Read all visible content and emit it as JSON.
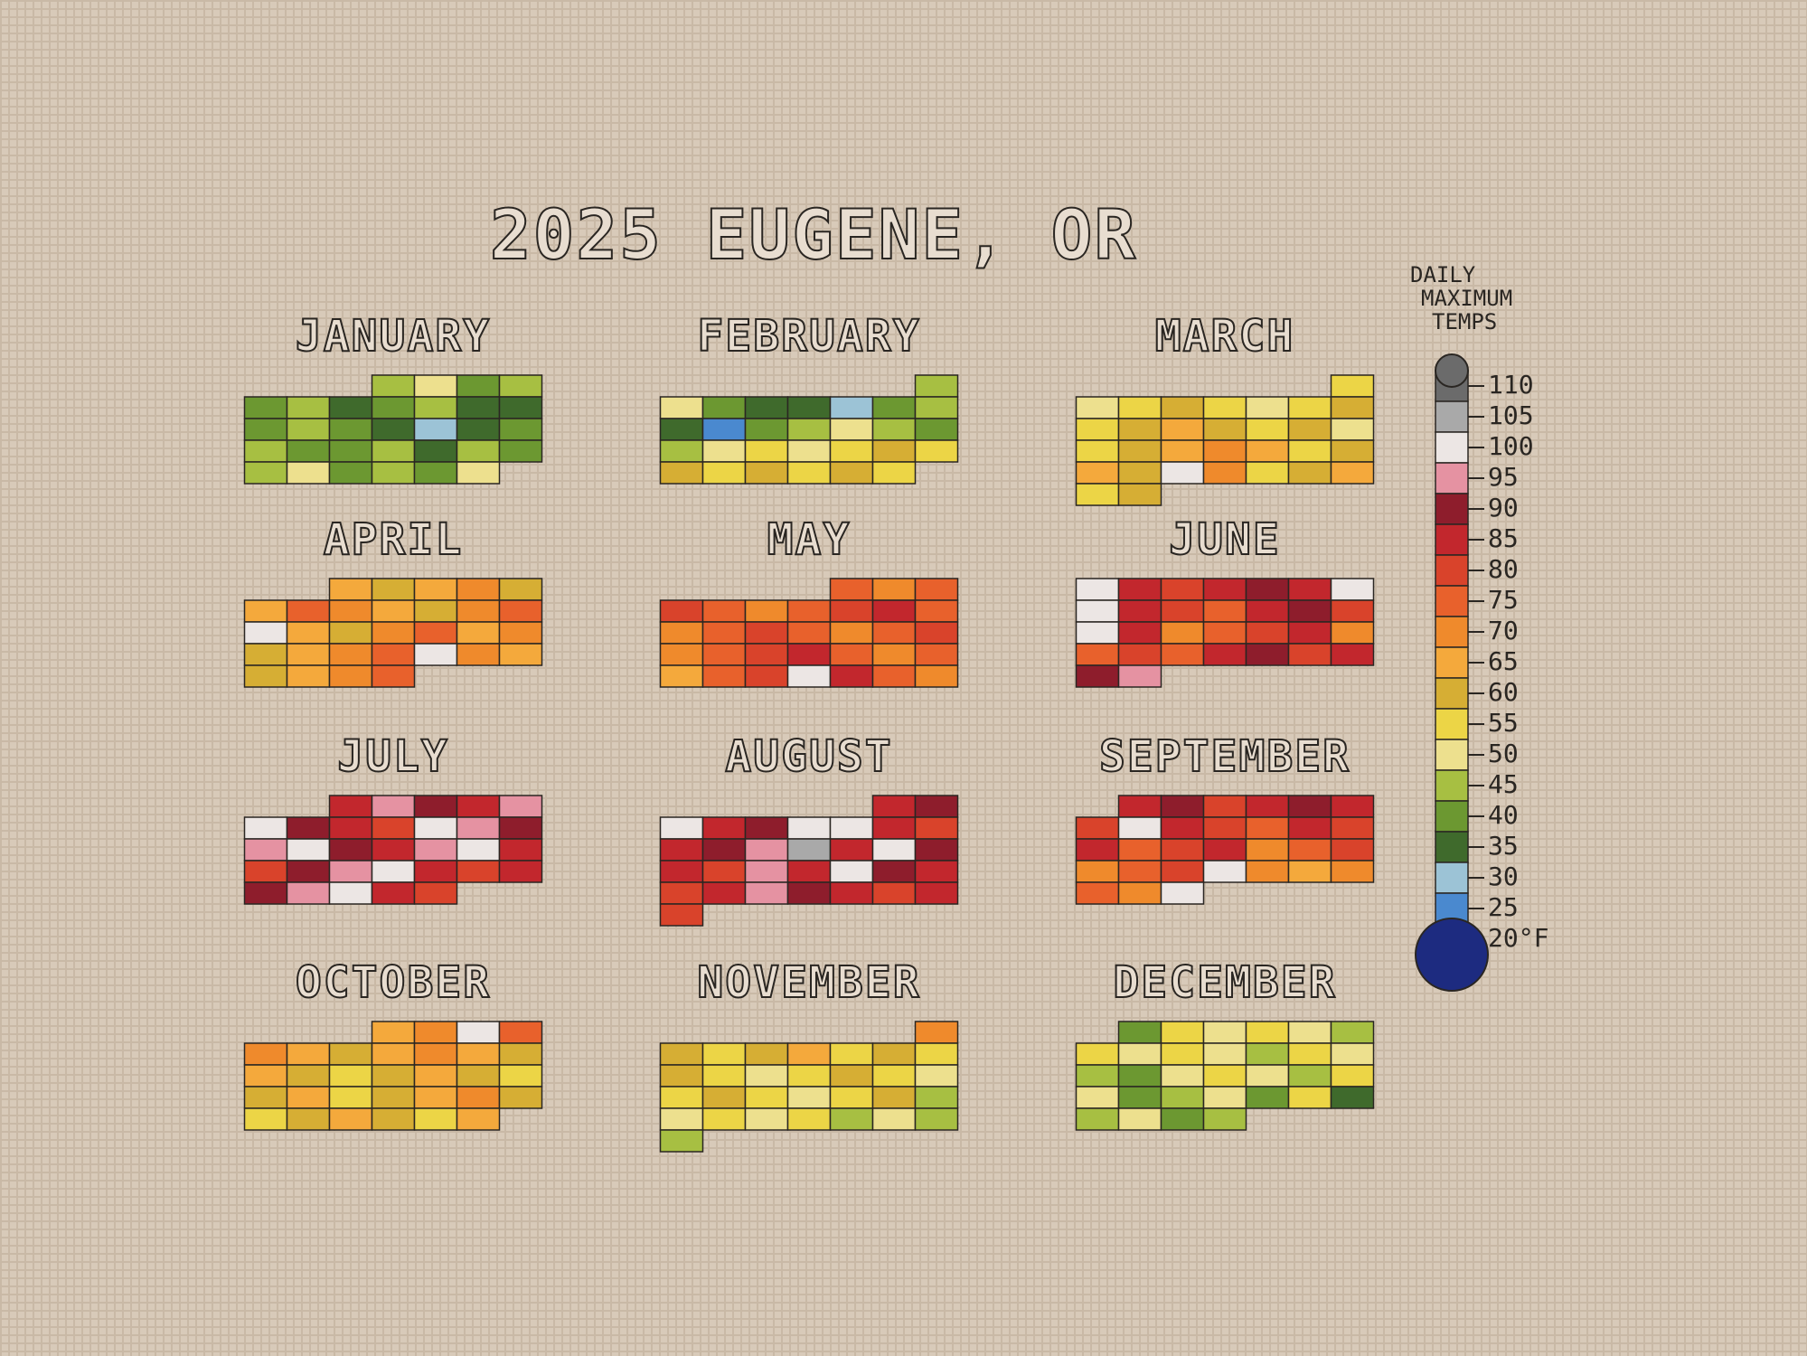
{
  "chart_data": {
    "type": "calendar-heatmap",
    "title": "2025 EUGENE, OR",
    "legend_title": [
      "DAILY",
      "MAXIMUM",
      "TEMPS"
    ],
    "yticks": [
      110,
      105,
      100,
      95,
      90,
      85,
      80,
      75,
      70,
      65,
      60,
      55,
      50,
      45,
      40,
      35,
      30,
      25,
      {
        "value": 20,
        "label": "20°F"
      }
    ],
    "colors": [
      "#6b6b6b",
      "#a9a9a9",
      "#ece6e4",
      "#e592a2",
      "#8e1d2c",
      "#c2272d",
      "#d9432b",
      "#e8612c",
      "#ef8a2c",
      "#f4a93c",
      "#d6ae34",
      "#ecd546",
      "#ede08e",
      "#a7bf42",
      "#6c9831",
      "#3f6a2c",
      "#9cc3d6",
      "#4a89cf",
      "#1d2b80"
    ],
    "months": [
      {
        "name": "JANUARY",
        "values": [
          45,
          50,
          40,
          45,
          40,
          45,
          35,
          40,
          45,
          35,
          35,
          40,
          45,
          40,
          35,
          30,
          35,
          40,
          45,
          40,
          40,
          45,
          35,
          45,
          40,
          45,
          50,
          40,
          45,
          40,
          50
        ]
      },
      {
        "name": "FEBRUARY",
        "values": [
          45,
          50,
          40,
          35,
          35,
          30,
          40,
          45,
          35,
          25,
          40,
          45,
          50,
          45,
          40,
          45,
          50,
          55,
          50,
          55,
          60,
          55,
          60,
          55,
          60,
          55,
          60,
          55
        ]
      },
      {
        "name": "MARCH",
        "values": [
          55,
          50,
          55,
          60,
          55,
          50,
          55,
          60,
          55,
          60,
          65,
          60,
          55,
          60,
          50,
          55,
          60,
          65,
          70,
          65,
          55,
          60,
          65,
          60,
          100,
          70,
          55,
          60,
          65,
          55,
          60
        ]
      },
      {
        "name": "APRIL",
        "values": [
          65,
          60,
          65,
          70,
          60,
          65,
          75,
          70,
          65,
          60,
          70,
          75,
          100,
          65,
          60,
          70,
          75,
          65,
          70,
          60,
          65,
          70,
          75,
          100,
          70,
          65,
          60,
          65,
          70,
          75
        ]
      },
      {
        "name": "MAY",
        "values": [
          75,
          70,
          75,
          80,
          75,
          70,
          75,
          80,
          85,
          75,
          70,
          75,
          80,
          75,
          70,
          75,
          80,
          70,
          75,
          80,
          85,
          75,
          70,
          75,
          65,
          75,
          80,
          100,
          85,
          75,
          70
        ]
      },
      {
        "name": "JUNE",
        "values": [
          100,
          85,
          80,
          85,
          90,
          85,
          100,
          100,
          85,
          80,
          75,
          85,
          90,
          80,
          100,
          85,
          70,
          75,
          80,
          85,
          70,
          75,
          80,
          75,
          85,
          90,
          80,
          85,
          90,
          95
        ]
      },
      {
        "name": "JULY",
        "values": [
          85,
          95,
          90,
          85,
          95,
          100,
          90,
          85,
          80,
          100,
          95,
          90,
          95,
          100,
          90,
          85,
          95,
          100,
          85,
          80,
          90,
          95,
          100,
          85,
          80,
          85,
          90,
          95,
          100,
          85,
          80
        ]
      },
      {
        "name": "AUGUST",
        "values": [
          85,
          90,
          100,
          85,
          90,
          100,
          100,
          85,
          80,
          85,
          90,
          95,
          105,
          85,
          100,
          90,
          85,
          80,
          95,
          85,
          100,
          90,
          85,
          80,
          85,
          95,
          90,
          85,
          80,
          85,
          80
        ]
      },
      {
        "name": "SEPTEMBER",
        "values": [
          85,
          90,
          80,
          85,
          90,
          85,
          80,
          100,
          85,
          80,
          75,
          85,
          80,
          85,
          75,
          80,
          85,
          70,
          75,
          80,
          70,
          75,
          80,
          100,
          70,
          65,
          70,
          75,
          70,
          100
        ]
      },
      {
        "name": "OCTOBER",
        "values": [
          65,
          70,
          100,
          75,
          70,
          65,
          60,
          65,
          70,
          65,
          60,
          65,
          60,
          55,
          60,
          65,
          60,
          55,
          60,
          65,
          55,
          60,
          65,
          70,
          60,
          55,
          60,
          65,
          60,
          55,
          65
        ]
      },
      {
        "name": "NOVEMBER",
        "values": [
          70,
          60,
          55,
          60,
          65,
          55,
          60,
          55,
          60,
          55,
          50,
          55,
          60,
          55,
          50,
          55,
          60,
          55,
          50,
          55,
          60,
          45,
          50,
          55,
          50,
          55,
          45,
          50,
          45,
          45
        ]
      },
      {
        "name": "DECEMBER",
        "values": [
          40,
          55,
          50,
          55,
          50,
          45,
          55,
          50,
          55,
          50,
          45,
          55,
          50,
          45,
          40,
          50,
          55,
          50,
          45,
          55,
          50,
          40,
          45,
          50,
          40,
          55,
          35,
          45,
          50,
          40,
          45
        ]
      }
    ]
  }
}
